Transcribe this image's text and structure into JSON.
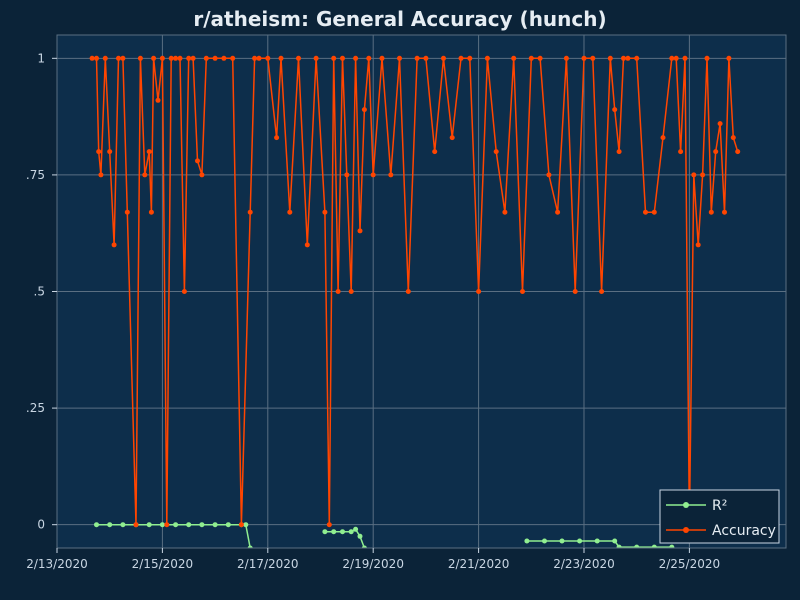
{
  "chart_data": {
    "type": "line",
    "title": "r/atheism: General Accuracy (hunch)",
    "xlabel": "",
    "ylabel": "",
    "x_ticks": [
      "2/13/2020",
      "2/15/2020",
      "2/17/2020",
      "2/19/2020",
      "2/21/2020",
      "2/23/2020",
      "2/25/2020"
    ],
    "y_ticks": [
      "0",
      ".25",
      ".5",
      ".75",
      "1"
    ],
    "xlim": [
      "2020-02-13T00:00",
      "2020-02-26T20:00"
    ],
    "ylim": [
      -0.05,
      1.05
    ],
    "grid": true,
    "legend_position": "bottom-right",
    "series": [
      {
        "name": "R²",
        "color": "#90ee90",
        "segments": [
          {
            "x": [
              "2020-02-13T18:00",
              "2020-02-14T00:00",
              "2020-02-14T06:00",
              "2020-02-14T12:00",
              "2020-02-14T18:00",
              "2020-02-15T00:00",
              "2020-02-15T06:00",
              "2020-02-15T12:00",
              "2020-02-15T18:00",
              "2020-02-16T00:00",
              "2020-02-16T06:00",
              "2020-02-16T12:00",
              "2020-02-16T14:00",
              "2020-02-16T16:00"
            ],
            "y": [
              0,
              0,
              0,
              0,
              0,
              0,
              0,
              0,
              0,
              0,
              0,
              0,
              0,
              -0.05
            ]
          },
          {
            "x": [
              "2020-02-18T02:00",
              "2020-02-18T06:00",
              "2020-02-18T10:00",
              "2020-02-18T14:00",
              "2020-02-18T16:00",
              "2020-02-18T18:00",
              "2020-02-18T20:00"
            ],
            "y": [
              -0.015,
              -0.015,
              -0.015,
              -0.015,
              -0.01,
              -0.025,
              -0.05
            ]
          },
          {
            "x": [
              "2020-02-21T22:00",
              "2020-02-22T06:00",
              "2020-02-22T14:00",
              "2020-02-22T22:00",
              "2020-02-23T06:00",
              "2020-02-23T14:00",
              "2020-02-23T16:00",
              "2020-02-24T00:00",
              "2020-02-24T08:00",
              "2020-02-24T16:00"
            ],
            "y": [
              -0.035,
              -0.035,
              -0.035,
              -0.035,
              -0.035,
              -0.035,
              -0.048,
              -0.048,
              -0.048,
              -0.048
            ]
          }
        ]
      },
      {
        "name": "Accuracy",
        "color": "#ff4500",
        "x": [
          "2020-02-13T16:00",
          "2020-02-13T18:00",
          "2020-02-13T19:00",
          "2020-02-13T20:00",
          "2020-02-13T22:00",
          "2020-02-14T00:00",
          "2020-02-14T02:00",
          "2020-02-14T04:00",
          "2020-02-14T06:00",
          "2020-02-14T08:00",
          "2020-02-14T12:00",
          "2020-02-14T14:00",
          "2020-02-14T16:00",
          "2020-02-14T18:00",
          "2020-02-14T19:00",
          "2020-02-14T20:00",
          "2020-02-14T22:00",
          "2020-02-15T00:00",
          "2020-02-15T02:00",
          "2020-02-15T04:00",
          "2020-02-15T06:00",
          "2020-02-15T08:00",
          "2020-02-15T10:00",
          "2020-02-15T12:00",
          "2020-02-15T14:00",
          "2020-02-15T16:00",
          "2020-02-15T18:00",
          "2020-02-15T20:00",
          "2020-02-16T00:00",
          "2020-02-16T04:00",
          "2020-02-16T08:00",
          "2020-02-16T12:00",
          "2020-02-16T16:00",
          "2020-02-16T18:00",
          "2020-02-16T20:00",
          "2020-02-17T00:00",
          "2020-02-17T04:00",
          "2020-02-17T06:00",
          "2020-02-17T10:00",
          "2020-02-17T14:00",
          "2020-02-17T18:00",
          "2020-02-17T22:00",
          "2020-02-18T02:00",
          "2020-02-18T04:00",
          "2020-02-18T06:00",
          "2020-02-18T08:00",
          "2020-02-18T10:00",
          "2020-02-18T12:00",
          "2020-02-18T14:00",
          "2020-02-18T16:00",
          "2020-02-18T18:00",
          "2020-02-18T20:00",
          "2020-02-18T22:00",
          "2020-02-19T00:00",
          "2020-02-19T04:00",
          "2020-02-19T08:00",
          "2020-02-19T12:00",
          "2020-02-19T16:00",
          "2020-02-19T20:00",
          "2020-02-20T00:00",
          "2020-02-20T04:00",
          "2020-02-20T08:00",
          "2020-02-20T12:00",
          "2020-02-20T16:00",
          "2020-02-20T20:00",
          "2020-02-21T00:00",
          "2020-02-21T04:00",
          "2020-02-21T08:00",
          "2020-02-21T12:00",
          "2020-02-21T16:00",
          "2020-02-21T20:00",
          "2020-02-22T00:00",
          "2020-02-22T04:00",
          "2020-02-22T08:00",
          "2020-02-22T12:00",
          "2020-02-22T16:00",
          "2020-02-22T20:00",
          "2020-02-23T00:00",
          "2020-02-23T04:00",
          "2020-02-23T08:00",
          "2020-02-23T12:00",
          "2020-02-23T14:00",
          "2020-02-23T16:00",
          "2020-02-23T18:00",
          "2020-02-23T20:00",
          "2020-02-24T00:00",
          "2020-02-24T04:00",
          "2020-02-24T08:00",
          "2020-02-24T12:00",
          "2020-02-24T16:00",
          "2020-02-24T18:00",
          "2020-02-24T20:00",
          "2020-02-24T22:00",
          "2020-02-25T00:00",
          "2020-02-25T02:00",
          "2020-02-25T04:00",
          "2020-02-25T06:00",
          "2020-02-25T08:00",
          "2020-02-25T10:00",
          "2020-02-25T12:00",
          "2020-02-25T14:00",
          "2020-02-25T16:00",
          "2020-02-25T18:00",
          "2020-02-25T20:00",
          "2020-02-25T22:00"
        ],
        "y": [
          1,
          1,
          0.8,
          0.75,
          1,
          0.8,
          0.6,
          1,
          1,
          0.67,
          0,
          1,
          0.75,
          0.8,
          0.67,
          1,
          0.91,
          1,
          0,
          1,
          1,
          1,
          0.5,
          1,
          1,
          0.78,
          0.75,
          1,
          1,
          1,
          1,
          0,
          0.67,
          1,
          1,
          1,
          0.83,
          1,
          0.67,
          1,
          0.6,
          1,
          0.67,
          0,
          1,
          0.5,
          1,
          0.75,
          0.5,
          1,
          0.63,
          0.89,
          1,
          0.75,
          1,
          0.75,
          1,
          0.5,
          1,
          1,
          0.8,
          1,
          0.83,
          1,
          1,
          0.5,
          1,
          0.8,
          0.67,
          1,
          0.5,
          1,
          1,
          0.75,
          0.67,
          1,
          0.5,
          1,
          1,
          0.5,
          1,
          0.89,
          0.8,
          1,
          1,
          1,
          0.67,
          0.67,
          0.83,
          1,
          1,
          0.8,
          1,
          0,
          0.75,
          0.6,
          0.75,
          1,
          0.67,
          0.8,
          0.86,
          0.67,
          1,
          0.83,
          0.8
        ]
      }
    ]
  }
}
